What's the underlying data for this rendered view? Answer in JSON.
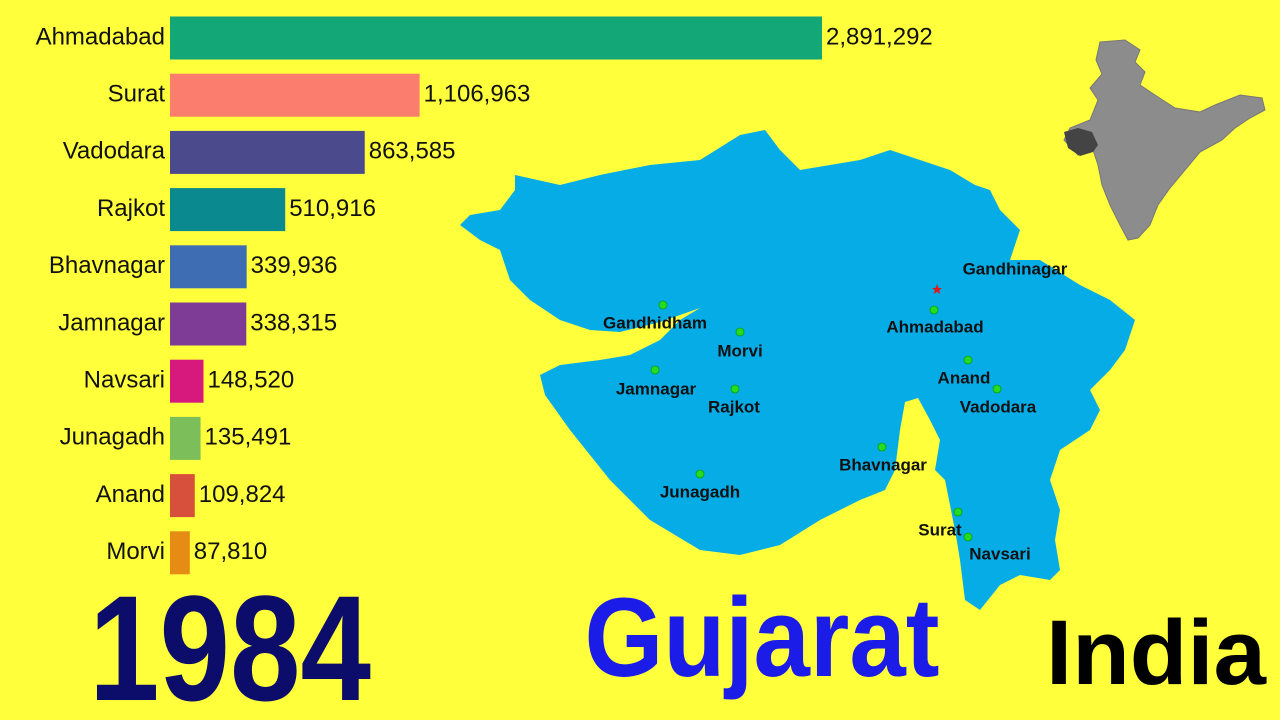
{
  "chart_data": {
    "type": "bar",
    "categories": [
      "Ahmadabad",
      "Surat",
      "Vadodara",
      "Rajkot",
      "Bhavnagar",
      "Jamnagar",
      "Navsari",
      "Junagadh",
      "Anand",
      "Morvi"
    ],
    "values": [
      2891292,
      1106963,
      863585,
      510916,
      339936,
      338315,
      148520,
      135491,
      109824,
      87810
    ],
    "value_labels": [
      "2,891,292",
      "1,106,963",
      "863,585",
      "510,916",
      "339,936",
      "338,315",
      "148,520",
      "135,491",
      "109,824",
      "87,810"
    ],
    "colors": [
      "#13a676",
      "#fa7d6e",
      "#4a4a8c",
      "#0a8a8e",
      "#3e6db4",
      "#7e3c96",
      "#d7197e",
      "#7cbe5a",
      "#d7503c",
      "#e68c14"
    ],
    "year": "1984"
  },
  "region": "Gujarat",
  "country": "India",
  "map": {
    "capital": "Gandhinagar",
    "cities": [
      "Gandhidham",
      "Morvi",
      "Jamnagar",
      "Rajkot",
      "Junagadh",
      "Ahmadabad",
      "Anand",
      "Vadodara",
      "Bhavnagar",
      "Surat",
      "Navsari"
    ]
  }
}
